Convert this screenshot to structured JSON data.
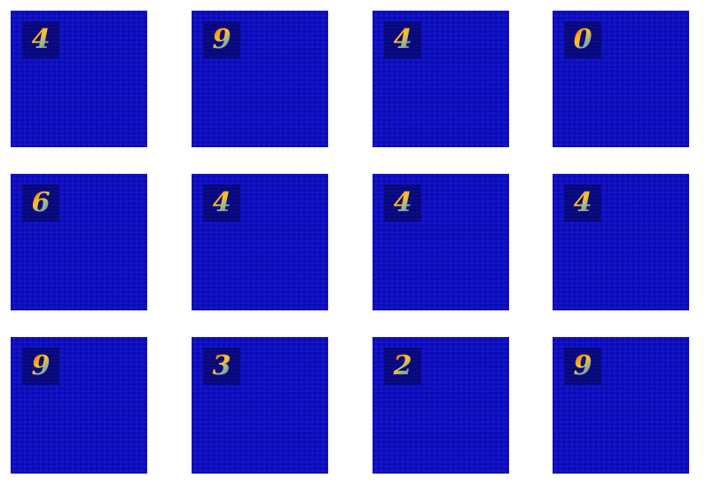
{
  "tiles": [
    {
      "digit": "4"
    },
    {
      "digit": "9"
    },
    {
      "digit": "4"
    },
    {
      "digit": "0"
    },
    {
      "digit": "6"
    },
    {
      "digit": "4"
    },
    {
      "digit": "4"
    },
    {
      "digit": "4"
    },
    {
      "digit": "9"
    },
    {
      "digit": "3"
    },
    {
      "digit": "2"
    },
    {
      "digit": "9"
    }
  ],
  "colors": {
    "tile_background": "#1010d8",
    "patch_background": "#0a0a8a",
    "digit_colormap": "jet"
  }
}
